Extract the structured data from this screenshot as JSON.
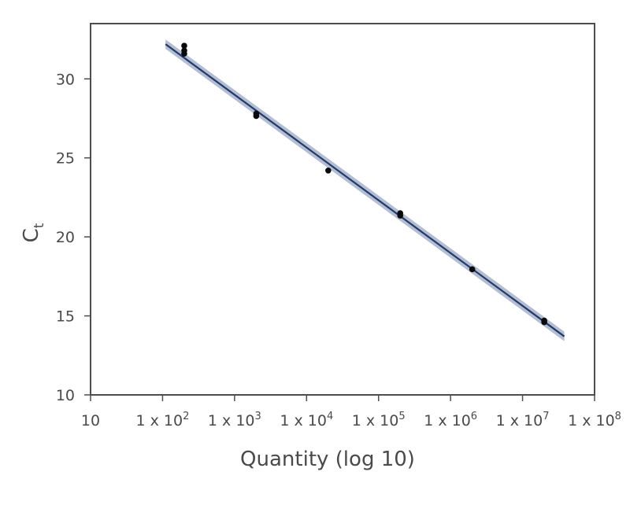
{
  "chart_data": {
    "type": "scatter",
    "xlabel": "Quantity (log 10)",
    "ylabel": {
      "main": "C",
      "sub": "t"
    },
    "x_scale": "log10",
    "xlim": [
      10,
      100000000
    ],
    "ylim": [
      10,
      33.5
    ],
    "x_ticks": [
      {
        "value": 10,
        "base": "10",
        "exp": ""
      },
      {
        "value": 100,
        "base": "1 x 10",
        "exp": "2"
      },
      {
        "value": 1000,
        "base": "1 x 10",
        "exp": "3"
      },
      {
        "value": 10000,
        "base": "1 x 10",
        "exp": "4"
      },
      {
        "value": 100000,
        "base": "1 x 10",
        "exp": "5"
      },
      {
        "value": 1000000,
        "base": "1 x 10",
        "exp": "6"
      },
      {
        "value": 10000000,
        "base": "1 x 10",
        "exp": "7"
      },
      {
        "value": 100000000,
        "base": "1 x 10",
        "exp": "8"
      }
    ],
    "y_ticks": [
      10,
      15,
      20,
      25,
      30
    ],
    "grid": false,
    "points": [
      {
        "x": 200,
        "y": 32.1
      },
      {
        "x": 200,
        "y": 31.8
      },
      {
        "x": 200,
        "y": 31.6
      },
      {
        "x": 2000,
        "y": 27.8
      },
      {
        "x": 2000,
        "y": 27.65
      },
      {
        "x": 20000,
        "y": 24.2
      },
      {
        "x": 200000,
        "y": 21.5
      },
      {
        "x": 200000,
        "y": 21.35
      },
      {
        "x": 2000000,
        "y": 17.95
      },
      {
        "x": 20000000,
        "y": 14.7
      },
      {
        "x": 20000000,
        "y": 14.6
      }
    ],
    "fit_line": {
      "x": [
        110,
        38000000
      ],
      "y": [
        32.2,
        13.7
      ]
    },
    "confidence_band_halfwidth": 0.3,
    "colors": {
      "points": "#0a0a0a",
      "line": "#1f3a6b",
      "band": "#9aa8c4",
      "axes": "#4d4d4d"
    }
  }
}
